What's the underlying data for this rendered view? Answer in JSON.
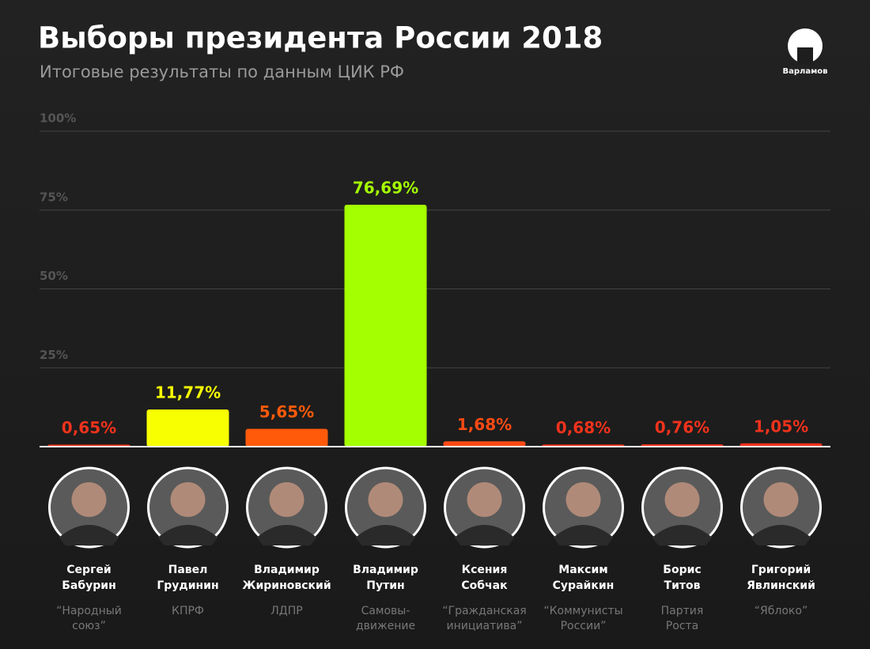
{
  "chart_data": {
    "type": "bar",
    "title": "Выборы президента России 2018",
    "subtitle": "Итоговые результаты по данным ЦИК РФ",
    "logo_text": "Варламов",
    "categories": [
      "Сергей\nБабурин",
      "Павел\nГрудинин",
      "Владимир\nЖириновский",
      "Владимир\nПутин",
      "Ксения\nСобчак",
      "Максим\nСурайкин",
      "Борис\nТитов",
      "Григорий\nЯвлинский"
    ],
    "parties": [
      "“Народный\nсоюз”",
      "КПРФ",
      "ЛДПР",
      "Самовы-\nдвижение",
      "“Гражданская\nинициатива”",
      "“Коммунисты\nРоссии”",
      "Партия\nРоста",
      "“Яблоко”"
    ],
    "values": [
      0.65,
      11.77,
      5.65,
      76.69,
      1.68,
      0.68,
      0.76,
      1.05
    ],
    "value_labels": [
      "0,65%",
      "11,77%",
      "5,65%",
      "76,69%",
      "1,68%",
      "0,68%",
      "0,76%",
      "1,05%"
    ],
    "colors": [
      "#f0321c",
      "#f7ff00",
      "#ff5a0a",
      "#a4ff00",
      "#ff4a14",
      "#f0321c",
      "#f0321c",
      "#f0321c"
    ],
    "ylim": [
      0,
      100
    ],
    "yticks": [
      {
        "value": 25,
        "label": "25%"
      },
      {
        "value": 50,
        "label": "50%"
      },
      {
        "value": 75,
        "label": "75%"
      },
      {
        "value": 100,
        "label": "100%"
      }
    ],
    "grid": true
  }
}
